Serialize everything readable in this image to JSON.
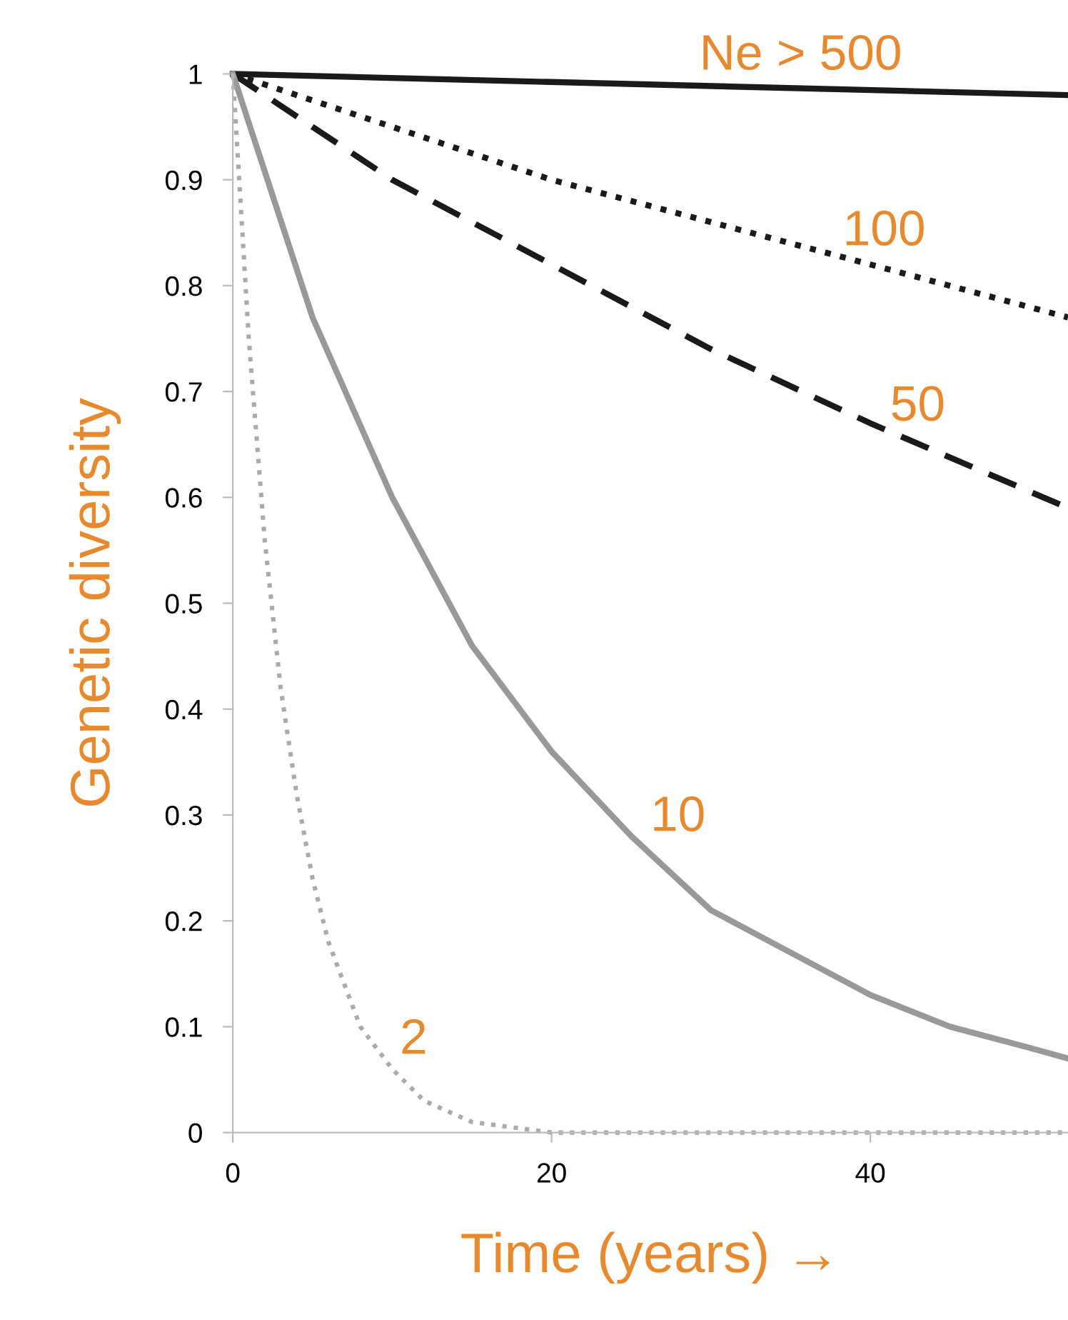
{
  "chart_data": {
    "type": "line",
    "xlabel": "Time (years) →",
    "ylabel": "Genetic diversity",
    "xlim": [
      0,
      52.4
    ],
    "xticks": [
      0,
      20,
      40
    ],
    "ylim": [
      0,
      1
    ],
    "yticks": [
      0,
      0.1,
      0.2,
      0.3,
      0.4,
      0.5,
      0.6,
      0.7,
      0.8,
      0.9,
      1
    ],
    "grid": false,
    "legend": false,
    "marker": "none",
    "series": [
      {
        "name": "Ne > 500",
        "color": "#1a1a1a",
        "line_style": "solid",
        "x": [
          0,
          52.4
        ],
        "values": [
          1,
          0.98
        ]
      },
      {
        "name": "100",
        "color": "#1a1a1a",
        "line_style": "dotted",
        "x": [
          0,
          10,
          20,
          30,
          40,
          52.4
        ],
        "values": [
          1,
          0.95,
          0.9,
          0.86,
          0.82,
          0.77
        ]
      },
      {
        "name": "50",
        "color": "#1a1a1a",
        "line_style": "dashed",
        "x": [
          0,
          10,
          20,
          30,
          40,
          52.4
        ],
        "values": [
          1,
          0.9,
          0.82,
          0.74,
          0.67,
          0.59
        ]
      },
      {
        "name": "10",
        "color": "#999999",
        "line_style": "solid",
        "x": [
          0,
          5,
          10,
          15,
          20,
          25,
          30,
          35,
          40,
          45,
          50,
          52.4
        ],
        "values": [
          1,
          0.77,
          0.6,
          0.46,
          0.36,
          0.28,
          0.21,
          0.17,
          0.13,
          0.1,
          0.08,
          0.07
        ]
      },
      {
        "name": "2",
        "color": "#aaaaaa",
        "line_style": "dotted",
        "x": [
          0,
          1,
          2,
          3,
          4,
          5,
          6,
          8,
          10,
          12,
          15,
          20,
          52.4
        ],
        "values": [
          1,
          0.75,
          0.56,
          0.42,
          0.32,
          0.24,
          0.18,
          0.1,
          0.06,
          0.03,
          0.01,
          0,
          0
        ]
      }
    ]
  }
}
